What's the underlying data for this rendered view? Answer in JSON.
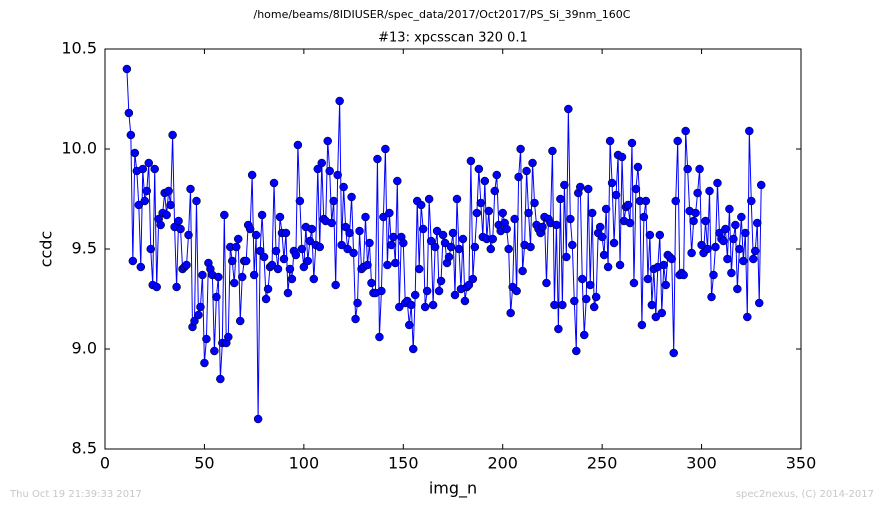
{
  "chart_data": {
    "type": "line",
    "suptitle": "/home/beams/8IDIUSER/spec_data/2017/Oct2017/PS_Si_39nm_160C",
    "title": "#13: xpcsscan 320 0.1",
    "xlabel": "img_n",
    "ylabel": "ccdc",
    "footer_left": "Thu Oct 19 21:39:33 2017",
    "footer_right": "spec2nexus, (C) 2014-2017",
    "xlim": [
      0,
      350
    ],
    "xticks": [
      0,
      50,
      100,
      150,
      200,
      250,
      300,
      350
    ],
    "ylim": [
      8.5,
      10.5
    ],
    "yticks": [
      8.5,
      {
        "value": 9,
        "label": "9.0"
      },
      9.5,
      {
        "value": 10,
        "label": "10.0"
      },
      10.5
    ],
    "grid": false,
    "series": [
      {
        "color": "#0000ff",
        "x": [
          11,
          12,
          13,
          14,
          15,
          16,
          17,
          18,
          19,
          20,
          21,
          22,
          23,
          24,
          25,
          26,
          27,
          28,
          29,
          30,
          31,
          32,
          33,
          34,
          35,
          36,
          37,
          38,
          39,
          40,
          41,
          42,
          43,
          44,
          45,
          46,
          47,
          48,
          49,
          50,
          51,
          52,
          53,
          54,
          55,
          56,
          57,
          58,
          59,
          60,
          61,
          62,
          63,
          64,
          65,
          66,
          67,
          68,
          69,
          70,
          71,
          72,
          73,
          74,
          75,
          76,
          77,
          78,
          79,
          80,
          81,
          82,
          83,
          84,
          85,
          86,
          87,
          88,
          89,
          90,
          91,
          92,
          93,
          94,
          95,
          96,
          97,
          98,
          99,
          100,
          101,
          102,
          103,
          104,
          105,
          106,
          107,
          108,
          109,
          110,
          111,
          112,
          113,
          114,
          115,
          116,
          117,
          118,
          119,
          120,
          121,
          122,
          123,
          124,
          125,
          126,
          127,
          128,
          129,
          130,
          131,
          132,
          133,
          134,
          135,
          136,
          137,
          138,
          139,
          140,
          141,
          142,
          143,
          144,
          145,
          146,
          147,
          148,
          149,
          150,
          151,
          152,
          153,
          154,
          155,
          156,
          157,
          158,
          159,
          160,
          161,
          162,
          163,
          164,
          165,
          166,
          167,
          168,
          169,
          170,
          171,
          172,
          173,
          174,
          175,
          176,
          177,
          178,
          179,
          180,
          181,
          182,
          183,
          184,
          185,
          186,
          187,
          188,
          189,
          190,
          191,
          192,
          193,
          194,
          195,
          196,
          197,
          198,
          199,
          200,
          201,
          202,
          203,
          204,
          205,
          206,
          207,
          208,
          209,
          210,
          211,
          212,
          213,
          214,
          215,
          216,
          217,
          218,
          219,
          220,
          221,
          222,
          223,
          224,
          225,
          226,
          227,
          228,
          229,
          230,
          231,
          232,
          233,
          234,
          235,
          236,
          237,
          238,
          239,
          240,
          241,
          242,
          243,
          244,
          245,
          246,
          247,
          248,
          249,
          250,
          251,
          252,
          253,
          254,
          255,
          256,
          257,
          258,
          259,
          260,
          261,
          262,
          263,
          264,
          265,
          266,
          267,
          268,
          269,
          270,
          271,
          272,
          273,
          274,
          275,
          276,
          277,
          278,
          279,
          280,
          281,
          282,
          283,
          284,
          285,
          286,
          287,
          288,
          289,
          290,
          291,
          292,
          293,
          294,
          295,
          296,
          297,
          298,
          299,
          300,
          301,
          302,
          303,
          304,
          305,
          306,
          307,
          308,
          309,
          310,
          311,
          312,
          313,
          314,
          315,
          316,
          317,
          318,
          319,
          320,
          321,
          322,
          323,
          324,
          325,
          326,
          327,
          328,
          329,
          330
        ],
        "values": [
          10.4,
          10.18,
          10.07,
          9.44,
          9.98,
          9.89,
          9.72,
          9.41,
          9.9,
          9.74,
          9.79,
          9.93,
          9.5,
          9.32,
          9.9,
          9.31,
          9.65,
          9.62,
          9.68,
          9.78,
          9.67,
          9.79,
          9.72,
          10.07,
          9.61,
          9.31,
          9.64,
          9.6,
          9.4,
          9.41,
          9.42,
          9.57,
          9.8,
          9.11,
          9.14,
          9.74,
          9.17,
          9.21,
          9.37,
          8.93,
          9.05,
          9.43,
          9.4,
          9.37,
          8.99,
          9.26,
          9.36,
          8.85,
          9.03,
          9.67,
          9.03,
          9.06,
          9.51,
          9.44,
          9.33,
          9.51,
          9.55,
          9.14,
          9.36,
          9.44,
          9.44,
          9.62,
          9.6,
          9.87,
          9.37,
          9.57,
          8.65,
          9.49,
          9.67,
          9.46,
          9.25,
          9.3,
          9.41,
          9.42,
          9.83,
          9.49,
          9.4,
          9.66,
          9.58,
          9.45,
          9.58,
          9.28,
          9.4,
          9.35,
          9.49,
          9.47,
          10.02,
          9.74,
          9.5,
          9.41,
          9.61,
          9.44,
          9.54,
          9.6,
          9.35,
          9.52,
          9.9,
          9.51,
          9.93,
          9.65,
          9.64,
          10.04,
          9.89,
          9.63,
          9.74,
          9.32,
          9.87,
          10.24,
          9.52,
          9.81,
          9.61,
          9.5,
          9.58,
          9.76,
          9.48,
          9.15,
          9.23,
          9.59,
          9.4,
          9.41,
          9.66,
          9.42,
          9.53,
          9.33,
          9.28,
          9.28,
          9.95,
          9.06,
          9.29,
          9.66,
          10.0,
          9.42,
          9.68,
          9.52,
          9.56,
          9.43,
          9.84,
          9.21,
          9.56,
          9.53,
          9.23,
          9.24,
          9.12,
          9.22,
          9.0,
          9.27,
          9.74,
          9.4,
          9.72,
          9.6,
          9.21,
          9.29,
          9.75,
          9.54,
          9.22,
          9.51,
          9.59,
          9.29,
          9.34,
          9.57,
          9.53,
          9.43,
          9.46,
          9.51,
          9.58,
          9.27,
          9.75,
          9.5,
          9.3,
          9.55,
          9.24,
          9.31,
          9.32,
          9.94,
          9.35,
          9.51,
          9.68,
          9.9,
          9.73,
          9.56,
          9.84,
          9.55,
          9.69,
          9.5,
          9.55,
          9.79,
          9.87,
          9.62,
          9.59,
          9.68,
          9.63,
          9.6,
          9.5,
          9.18,
          9.31,
          9.65,
          9.29,
          9.86,
          10.0,
          9.39,
          9.52,
          9.89,
          9.68,
          9.51,
          9.93,
          9.73,
          9.62,
          9.6,
          9.58,
          9.61,
          9.66,
          9.33,
          9.65,
          9.63,
          9.99,
          9.22,
          9.62,
          9.1,
          9.75,
          9.22,
          9.82,
          9.46,
          10.2,
          9.65,
          9.52,
          9.24,
          8.99,
          9.78,
          9.81,
          9.35,
          9.07,
          9.25,
          9.8,
          9.32,
          9.68,
          9.21,
          9.26,
          9.58,
          9.61,
          9.56,
          9.47,
          9.7,
          9.41,
          10.04,
          9.83,
          9.53,
          9.77,
          9.97,
          9.42,
          9.96,
          9.64,
          9.71,
          9.72,
          9.63,
          10.03,
          9.33,
          9.8,
          9.91,
          9.74,
          9.12,
          9.66,
          9.74,
          9.35,
          9.57,
          9.22,
          9.4,
          9.16,
          9.41,
          9.57,
          9.18,
          9.42,
          9.32,
          9.47,
          9.46,
          9.45,
          8.98,
          9.74,
          10.04,
          9.37,
          9.38,
          9.37,
          10.09,
          9.9,
          9.69,
          9.48,
          9.64,
          9.68,
          9.78,
          9.9,
          9.52,
          9.48,
          9.64,
          9.5,
          9.79,
          9.26,
          9.37,
          9.51,
          9.83,
          9.58,
          9.55,
          9.54,
          9.6,
          9.45,
          9.7,
          9.38,
          9.55,
          9.62,
          9.3,
          9.5,
          9.66,
          9.44,
          9.58,
          9.16,
          10.09,
          9.74,
          9.45,
          9.49,
          9.63,
          9.23,
          9.82
        ]
      }
    ]
  }
}
